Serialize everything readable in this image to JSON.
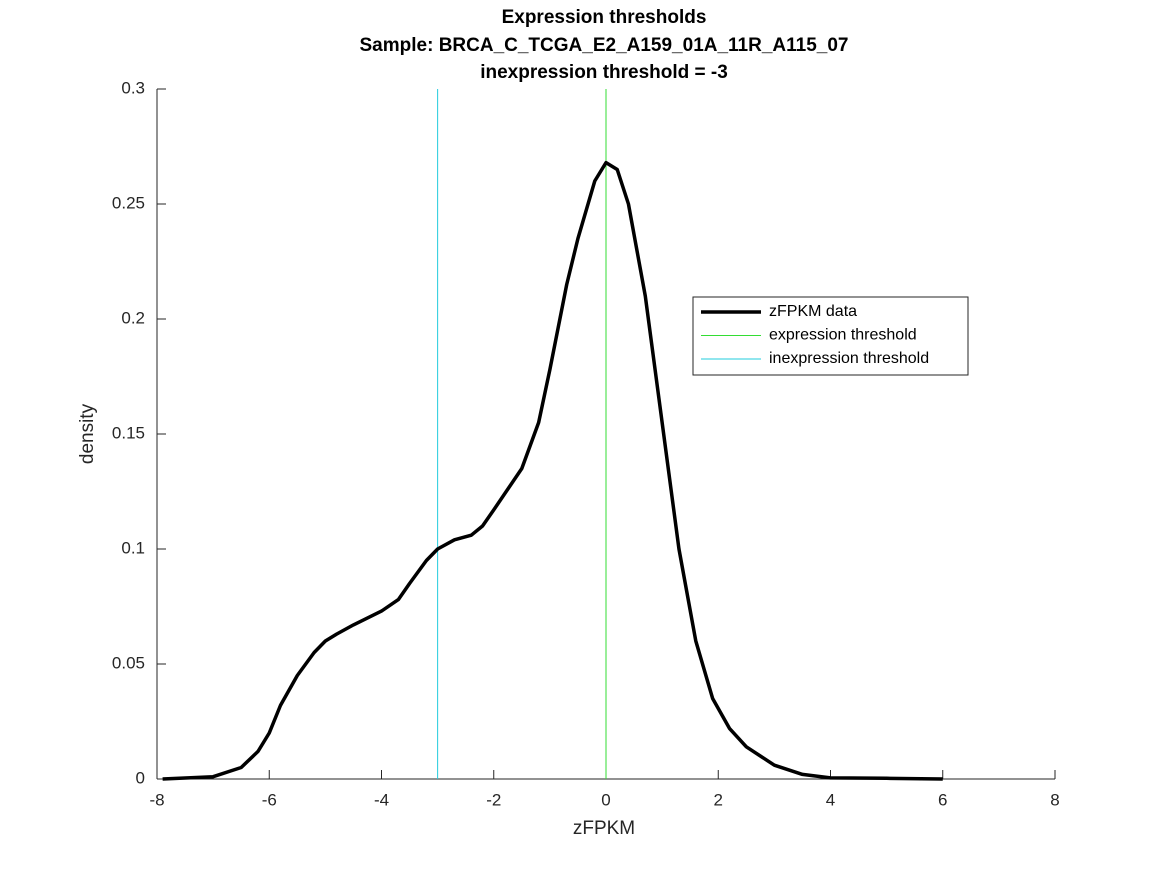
{
  "chart_data": {
    "type": "line",
    "title": [
      "Expression thresholds",
      "Sample: BRCA_C_TCGA_E2_A159_01A_11R_A115_07",
      "inexpression threshold = -3"
    ],
    "xlabel": "zFPKM",
    "ylabel": "density",
    "xlim": [
      -8,
      8
    ],
    "xticks": [
      -8,
      -6,
      -4,
      -2,
      0,
      2,
      4,
      6,
      8
    ],
    "ylim": [
      0,
      0.3
    ],
    "yticks": [
      0,
      0.05,
      0.1,
      0.15,
      0.2,
      0.25,
      0.3
    ],
    "series": [
      {
        "name": "zFPKM data",
        "color": "#000000",
        "width": 3.5,
        "x": [
          -7.9,
          -7,
          -6.5,
          -6.2,
          -6,
          -5.8,
          -5.5,
          -5.2,
          -5,
          -4.8,
          -4.5,
          -4,
          -3.7,
          -3.5,
          -3.2,
          -3,
          -2.7,
          -2.4,
          -2.2,
          -2,
          -1.5,
          -1.2,
          -1,
          -0.7,
          -0.5,
          -0.2,
          0,
          0.2,
          0.4,
          0.7,
          1,
          1.3,
          1.6,
          1.9,
          2.2,
          2.5,
          3,
          3.5,
          4,
          5,
          6
        ],
        "values": [
          0,
          0.001,
          0.005,
          0.012,
          0.02,
          0.032,
          0.045,
          0.055,
          0.06,
          0.063,
          0.067,
          0.073,
          0.078,
          0.085,
          0.095,
          0.1,
          0.104,
          0.106,
          0.11,
          0.117,
          0.135,
          0.155,
          0.178,
          0.215,
          0.235,
          0.26,
          0.268,
          0.265,
          0.25,
          0.21,
          0.155,
          0.1,
          0.06,
          0.035,
          0.022,
          0.014,
          0.006,
          0.002,
          0.0005,
          0.0003,
          0
        ]
      },
      {
        "name": "expression threshold",
        "color": "#33dd33",
        "width": 1,
        "x": [
          0,
          0
        ],
        "values": [
          0,
          0.3
        ]
      },
      {
        "name": "inexpression threshold",
        "color": "#22ccdd",
        "width": 1,
        "x": [
          -3,
          -3
        ],
        "values": [
          0,
          0.3
        ]
      }
    ]
  }
}
